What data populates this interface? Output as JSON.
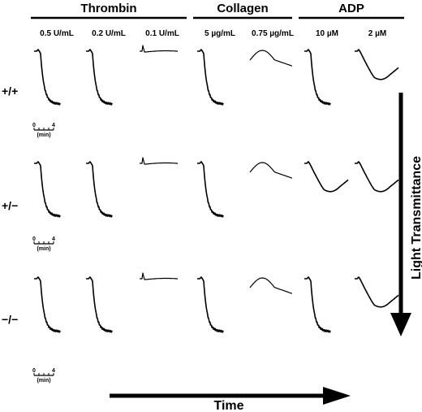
{
  "chart_data": {
    "type": "line",
    "description_free": true,
    "groups": [
      {
        "name": "Thrombin",
        "conditions": [
          "0.5 U/mL",
          "0.2 U/mL",
          "0.1 U/mL"
        ]
      },
      {
        "name": "Collagen",
        "conditions": [
          "5 µg/mL",
          "0.75 µg/mL"
        ]
      },
      {
        "name": "ADP",
        "conditions": [
          "10 µM",
          "2 µM"
        ]
      }
    ],
    "rows": [
      "+/+",
      "+/−",
      "−/−"
    ],
    "scale_bar": {
      "start": "0",
      "end": "4",
      "unit": "(min)"
    },
    "xlabel": "Time",
    "ylabel": "Light Transmittance",
    "traces": [
      [
        "full",
        "full",
        "small",
        "full",
        "hump",
        "full",
        "partial"
      ],
      [
        "full",
        "full",
        "small",
        "full",
        "hump",
        "partial",
        "partial"
      ],
      [
        "full",
        "full",
        "small",
        "full",
        "hump",
        "full",
        "partial"
      ]
    ]
  }
}
